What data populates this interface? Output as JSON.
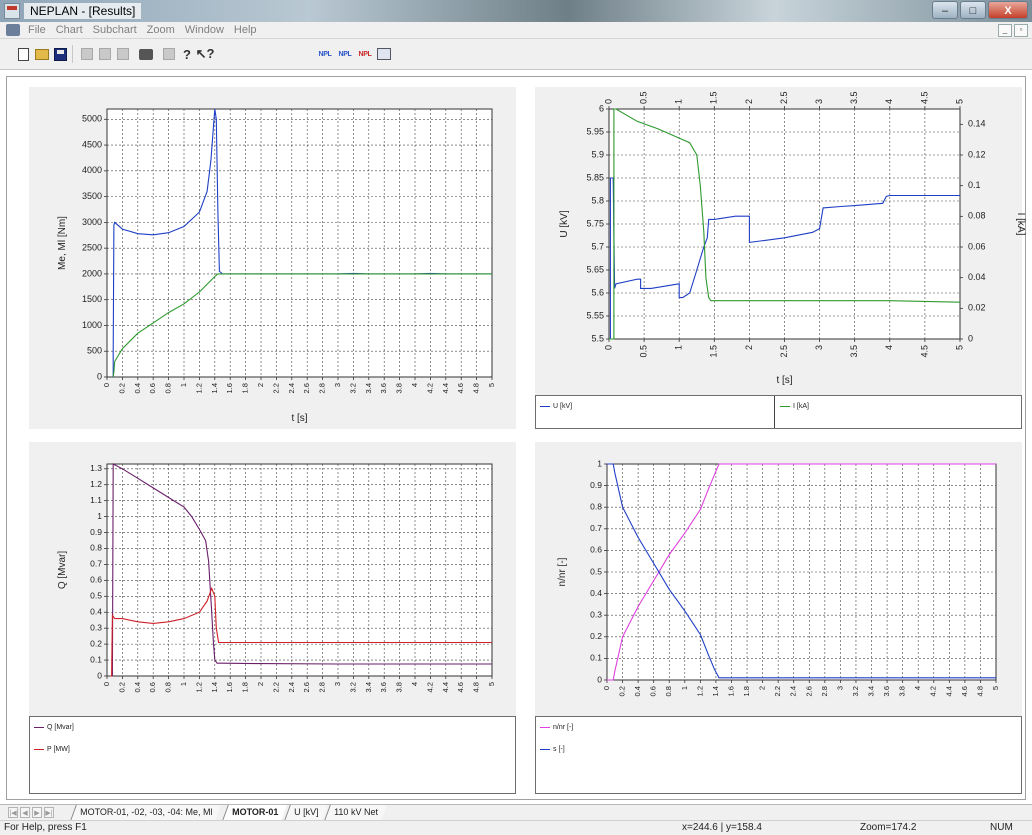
{
  "window": {
    "title": "NEPLAN - [Results]",
    "buttons": [
      "–",
      "□",
      "X"
    ]
  },
  "menu": {
    "items": [
      "File",
      "Chart",
      "Subchart",
      "Zoom",
      "Window",
      "Help"
    ],
    "mdi_buttons": [
      "_",
      "▫"
    ]
  },
  "toolbar": {
    "npl_labels": [
      "NPL",
      "NPL",
      "NPL"
    ]
  },
  "colors": {
    "blue_series": "#1f3fc6",
    "green_series": "#2e9a2e",
    "red_series": "#d0202a",
    "purple_series": "#6a1f6a",
    "magenta_series": "#e040e0"
  },
  "charts": [
    {
      "title": "",
      "ylabel": "Me, Ml [Nm]",
      "xlabel": "t [s]",
      "xlim": [
        0,
        5
      ],
      "ylim": [
        0,
        5200
      ],
      "xticks": [
        "0",
        "0.2",
        "0.4",
        "0.6",
        "0.8",
        "1",
        "1.2",
        "1.4",
        "1.6",
        "1.8",
        "2",
        "2.2",
        "2.4",
        "2.6",
        "2.8",
        "3",
        "3.2",
        "3.4",
        "3.6",
        "3.8",
        "4",
        "4.2",
        "4.4",
        "4.6",
        "4.8",
        "5"
      ],
      "yticks": [
        "0",
        "500",
        "1000",
        "1500",
        "2000",
        "2500",
        "3000",
        "3500",
        "4000",
        "4500",
        "5000"
      ],
      "series": [
        {
          "color": "#1f3fc6",
          "x": [
            0.08,
            0.08,
            0.09,
            0.1,
            0.2,
            0.4,
            0.6,
            0.8,
            1.0,
            1.2,
            1.3,
            1.35,
            1.4,
            1.42,
            1.44,
            1.46,
            1.5,
            2,
            3,
            3.2,
            3.4,
            4,
            4.2,
            4.4,
            5
          ],
          "y": [
            0,
            500,
            2950,
            3000,
            2870,
            2780,
            2760,
            2800,
            2920,
            3200,
            3600,
            4200,
            5200,
            5000,
            3200,
            2050,
            2000,
            2000,
            2000,
            2010,
            2000,
            2000,
            2010,
            2000,
            2000
          ]
        },
        {
          "color": "#2e9a2e",
          "x": [
            0.08,
            0.09,
            0.1,
            0.2,
            0.4,
            0.6,
            0.8,
            1.0,
            1.2,
            1.3,
            1.4,
            1.44,
            1.5,
            2,
            3,
            4,
            5
          ],
          "y": [
            0,
            100,
            300,
            550,
            850,
            1050,
            1250,
            1420,
            1650,
            1800,
            1950,
            2000,
            2000,
            2000,
            2000,
            2000,
            2000
          ]
        }
      ]
    },
    {
      "title": "",
      "ylabel": "U [kV]",
      "y2label": "I [kA]",
      "xlabel": "t [s]",
      "xlim": [
        0,
        5
      ],
      "ylim": [
        5.5,
        6
      ],
      "y2lim": [
        0,
        0.15
      ],
      "xticks": [
        "0",
        "0.5",
        "1",
        "1.5",
        "2",
        "2.5",
        "3",
        "3.5",
        "4",
        "4.5",
        "5"
      ],
      "yticks": [
        "5.5",
        "5.55",
        "5.6",
        "5.65",
        "5.7",
        "5.75",
        "5.8",
        "5.85",
        "5.9",
        "5.95",
        "6"
      ],
      "y2ticks": [
        "0",
        "0.02",
        "0.04",
        "0.06",
        "0.08",
        "0.1",
        "0.12",
        "0.14"
      ],
      "legend": [
        "U [kV]",
        "I [kA]"
      ],
      "series": [
        {
          "name": "U [kV]",
          "axis": "left",
          "color": "#1f3fc6",
          "x": [
            0,
            0.02,
            0.02,
            0.06,
            0.08,
            0.1,
            0.4,
            0.45,
            0.45,
            0.6,
            1.0,
            1.0,
            1.05,
            1.15,
            1.25,
            1.35,
            1.4,
            1.42,
            1.5,
            1.8,
            2.0,
            2.0,
            2.1,
            2.5,
            2.9,
            3.0,
            3.05,
            3.3,
            3.5,
            3.9,
            3.95,
            4.0,
            5.0
          ],
          "y": [
            5.5,
            5.5,
            5.85,
            5.85,
            5.61,
            5.62,
            5.63,
            5.63,
            5.61,
            5.61,
            5.62,
            5.59,
            5.59,
            5.6,
            5.65,
            5.7,
            5.72,
            5.76,
            5.76,
            5.767,
            5.767,
            5.71,
            5.712,
            5.72,
            5.732,
            5.74,
            5.785,
            5.788,
            5.79,
            5.795,
            5.81,
            5.812,
            5.812
          ]
        },
        {
          "name": "I [kA]",
          "axis": "right",
          "color": "#2e9a2e",
          "x": [
            0,
            0.05,
            0.07,
            0.07,
            0.1,
            0.4,
            0.7,
            1.0,
            1.15,
            1.25,
            1.3,
            1.35,
            1.38,
            1.42,
            1.45,
            2,
            3,
            4,
            5
          ],
          "y": [
            0,
            0,
            0,
            0.15,
            0.15,
            0.142,
            0.137,
            0.131,
            0.128,
            0.12,
            0.1,
            0.07,
            0.04,
            0.027,
            0.025,
            0.025,
            0.025,
            0.025,
            0.024
          ]
        }
      ]
    },
    {
      "title": "",
      "ylabel": "Q [Mvar]",
      "xlabel": "",
      "xlim": [
        0,
        5
      ],
      "ylim": [
        0,
        1.33
      ],
      "xticks": [
        "0",
        "0.2",
        "0.4",
        "0.6",
        "0.8",
        "1",
        "1.2",
        "1.4",
        "1.6",
        "1.8",
        "2",
        "2.2",
        "2.4",
        "2.6",
        "2.8",
        "3",
        "3.2",
        "3.4",
        "3.6",
        "3.8",
        "4",
        "4.2",
        "4.4",
        "4.6",
        "4.8",
        "5"
      ],
      "yticks": [
        "0",
        "0.1",
        "0.2",
        "0.3",
        "0.4",
        "0.5",
        "0.6",
        "0.7",
        "0.8",
        "0.9",
        "1",
        "1.1",
        "1.2",
        "1.3"
      ],
      "legend": [
        "Q [Mvar]",
        "P [MW]"
      ],
      "series": [
        {
          "name": "Q [Mvar]",
          "color": "#6a1f6a",
          "x": [
            0.05,
            0.07,
            0.08,
            0.2,
            0.4,
            0.6,
            0.8,
            1.0,
            1.1,
            1.2,
            1.28,
            1.32,
            1.36,
            1.38,
            1.4,
            1.43,
            1.5,
            2,
            3,
            4,
            5
          ],
          "y": [
            0,
            0,
            1.33,
            1.3,
            1.24,
            1.18,
            1.12,
            1.06,
            1.0,
            0.92,
            0.85,
            0.72,
            0.4,
            0.22,
            0.1,
            0.08,
            0.08,
            0.078,
            0.075,
            0.075,
            0.075
          ]
        },
        {
          "name": "P [MW]",
          "color": "#d0202a",
          "x": [
            0.04,
            0.06,
            0.07,
            0.1,
            0.2,
            0.4,
            0.6,
            0.8,
            1.0,
            1.2,
            1.3,
            1.36,
            1.4,
            1.42,
            1.45,
            1.5,
            2,
            3,
            4,
            5
          ],
          "y": [
            0,
            0,
            0.38,
            0.36,
            0.36,
            0.34,
            0.33,
            0.34,
            0.36,
            0.4,
            0.47,
            0.55,
            0.5,
            0.3,
            0.21,
            0.21,
            0.21,
            0.21,
            0.21,
            0.21
          ]
        }
      ]
    },
    {
      "title": "",
      "ylabel": "n/nr [-]",
      "xlabel": "",
      "xlim": [
        0,
        5
      ],
      "ylim": [
        0,
        1
      ],
      "xticks": [
        "0",
        "0.2",
        "0.4",
        "0.6",
        "0.8",
        "1",
        "1.2",
        "1.4",
        "1.6",
        "1.8",
        "2",
        "2.2",
        "2.4",
        "2.6",
        "2.8",
        "3",
        "3.2",
        "3.4",
        "3.6",
        "3.8",
        "4",
        "4.2",
        "4.4",
        "4.6",
        "4.8",
        "5"
      ],
      "yticks": [
        "0",
        "0.1",
        "0.2",
        "0.3",
        "0.4",
        "0.5",
        "0.6",
        "0.7",
        "0.8",
        "0.9",
        "1"
      ],
      "legend": [
        "n/nr [-]",
        "s [-]"
      ],
      "series": [
        {
          "name": "n/nr [-]",
          "color": "#e040e0",
          "x": [
            0,
            0.08,
            0.1,
            0.2,
            0.4,
            0.6,
            0.8,
            1.0,
            1.2,
            1.3,
            1.38,
            1.44,
            1.5,
            2,
            3,
            4,
            5
          ],
          "y": [
            0,
            0,
            0.04,
            0.2,
            0.34,
            0.46,
            0.58,
            0.68,
            0.79,
            0.88,
            0.95,
            1,
            1,
            1,
            1,
            1,
            1
          ]
        },
        {
          "name": "s [-]",
          "color": "#1f3fc6",
          "x": [
            0,
            0.08,
            0.1,
            0.2,
            0.4,
            0.6,
            0.8,
            1.0,
            1.2,
            1.3,
            1.38,
            1.44,
            1.5,
            2,
            3,
            4,
            5
          ],
          "y": [
            1,
            1,
            0.96,
            0.8,
            0.66,
            0.54,
            0.42,
            0.32,
            0.21,
            0.12,
            0.05,
            0.01,
            0.01,
            0.01,
            0.01,
            0.01,
            0.01
          ]
        }
      ]
    }
  ],
  "sheet_tabs": [
    {
      "label": "MOTOR-01, -02, -03, -04: Me, Ml",
      "active": false
    },
    {
      "label": "MOTOR-01",
      "active": true
    },
    {
      "label": "U [kV]",
      "active": false
    },
    {
      "label": "110 kV Net",
      "active": false
    }
  ],
  "tab_nav": [
    "|◀",
    "◀",
    "▶",
    "▶|"
  ],
  "status": {
    "help": "For Help, press F1",
    "coords": "x=244.6 | y=158.4",
    "zoom": "Zoom=174.2",
    "num": "NUM"
  }
}
